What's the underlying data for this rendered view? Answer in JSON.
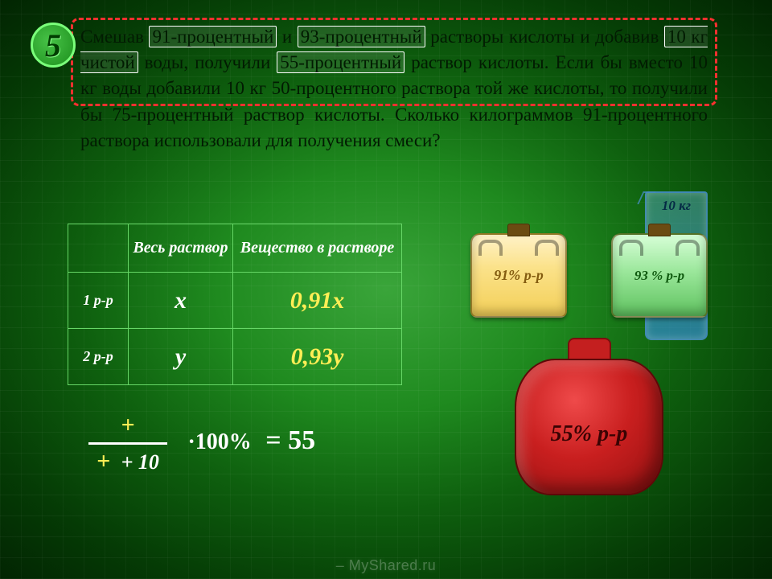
{
  "problem_number": "5",
  "problem": {
    "line1a": "Смешав ",
    "hl1": "91-процентный",
    "line1b": " и ",
    "hl2": "93-процентный",
    "line1c": " растворы кислоты и добавив ",
    "hl3": "10 кг чистой",
    "line1d": " воды, получили ",
    "hl4": "55-процентный",
    "line_tail": " раствор кислоты. Если бы вместо 10 кг воды добавили 10 кг 50-процентного раствора той же кислоты, то получили бы 75-процентный раствор кислоты. Сколько килограммов 91-процентного раствора использовали для получения смеси?"
  },
  "table": {
    "h1": "Весь раствор",
    "h2": "Вещество в растворе",
    "r1_label": "1 р-р",
    "r1_whole": "x",
    "r1_subst": "0,91x",
    "r2_label": "2 р-р",
    "r2_whole": "y",
    "r2_subst": "0,93y"
  },
  "canisters": {
    "c1_label": "91% р-р",
    "c2_label": "93 % р-р",
    "beaker_label": "10 кг",
    "out_label": "55% р-р"
  },
  "equation": {
    "top_plus": "+",
    "bot_plus": "+",
    "plus10": "+ 10",
    "mult": "·100%",
    "equals": "= 55"
  },
  "colors": {
    "accent_yellow": "#ffee55",
    "dash_red": "#ff3030",
    "grid_line": "#66d766"
  },
  "watermark": "– MyShared.ru"
}
